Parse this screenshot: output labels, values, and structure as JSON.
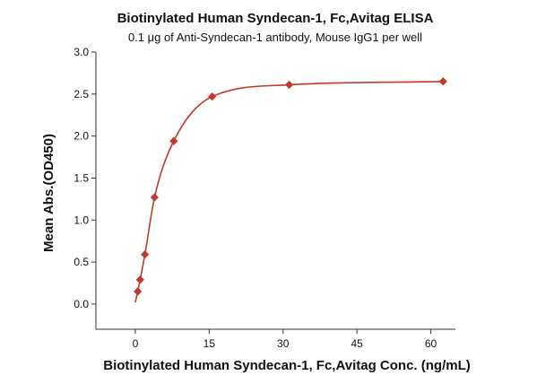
{
  "chart_data": {
    "type": "scatter",
    "title": "Biotinylated Human Syndecan-1, Fc,Avitag ELISA",
    "subtitle": "0.1 μg of Anti-Syndecan-1 antibody, Mouse IgG1 per well",
    "xlabel": "Biotinylated Human Syndecan-1, Fc,Avitag Conc. (ng/mL)",
    "ylabel": "Mean Abs.(OD450)",
    "xlim": [
      -8,
      65
    ],
    "ylim": [
      -0.3,
      3.0
    ],
    "x_ticks": [
      0,
      15,
      30,
      45,
      60
    ],
    "y_ticks": [
      0.0,
      0.5,
      1.0,
      1.5,
      2.0,
      2.5,
      3.0
    ],
    "x_tick_labels": [
      "0",
      "15",
      "30",
      "45",
      "60"
    ],
    "y_tick_labels": [
      "0.0",
      "0.5",
      "1.0",
      "1.5",
      "2.0",
      "2.5",
      "3.0"
    ],
    "grid": false,
    "series": [
      {
        "x": [
          0.49,
          0.98,
          1.95,
          3.9,
          7.8,
          15.6,
          31.25,
          62.5
        ],
        "y": [
          0.15,
          0.29,
          0.59,
          1.27,
          1.94,
          2.47,
          2.61,
          2.65
        ],
        "marker": "diamond",
        "color": "#c0392b",
        "fit_curve": "four-parameter logistic"
      }
    ]
  }
}
